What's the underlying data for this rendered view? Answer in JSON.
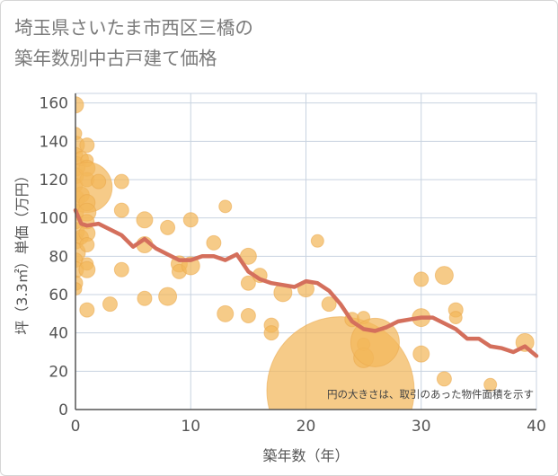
{
  "title_lines": [
    "埼玉県さいたま市西区三橋の",
    "築年数別中古戸建て価格"
  ],
  "chart_data": {
    "type": "scatter",
    "xlabel": "築年数（年）",
    "ylabel": "坪（3.3㎡）単価（万円）",
    "xlim": [
      0,
      40
    ],
    "ylim": [
      0,
      165
    ],
    "x_ticks": [
      "0",
      "10",
      "20",
      "30",
      "40"
    ],
    "y_ticks": [
      "0",
      "20",
      "40",
      "60",
      "80",
      "100",
      "120",
      "140",
      "160"
    ],
    "grid": true,
    "note": "円の大きさは、取引のあった物件面積を示す",
    "colors": {
      "bubble": "#f2b75a",
      "line": "#d46f5c",
      "grid": "#c8d3e0",
      "axis": "#555555"
    },
    "trend_line": {
      "x": [
        0,
        0.5,
        1,
        2,
        3,
        4,
        5,
        6,
        7,
        8,
        9,
        10,
        11,
        12,
        13,
        14,
        15,
        16,
        17,
        18,
        19,
        20,
        21,
        22,
        23,
        24,
        25,
        26,
        27,
        28,
        29,
        30,
        31,
        32,
        33,
        34,
        35,
        36,
        37,
        38,
        39,
        40
      ],
      "y": [
        104,
        97,
        96,
        97,
        94,
        91,
        85,
        89,
        84,
        81,
        78,
        78,
        80,
        80,
        78,
        81,
        72,
        68,
        66,
        65,
        64,
        67,
        66,
        62,
        55,
        46,
        42,
        41,
        43,
        46,
        47,
        48,
        48,
        45,
        42,
        37,
        37,
        33,
        32,
        30,
        33,
        28
      ]
    },
    "bubbles": [
      {
        "x": 0,
        "y": 159,
        "size": 9
      },
      {
        "x": 0,
        "y": 144,
        "size": 7
      },
      {
        "x": 0,
        "y": 138,
        "size": 10
      },
      {
        "x": 0,
        "y": 133,
        "size": 8
      },
      {
        "x": 0,
        "y": 127,
        "size": 11
      },
      {
        "x": 0,
        "y": 122,
        "size": 9
      },
      {
        "x": 0,
        "y": 117,
        "size": 8
      },
      {
        "x": 0,
        "y": 110,
        "size": 10
      },
      {
        "x": 0,
        "y": 103,
        "size": 9
      },
      {
        "x": 0,
        "y": 98,
        "size": 8
      },
      {
        "x": 0,
        "y": 93,
        "size": 10
      },
      {
        "x": 0,
        "y": 88,
        "size": 9
      },
      {
        "x": 0,
        "y": 82,
        "size": 11
      },
      {
        "x": 0,
        "y": 78,
        "size": 8
      },
      {
        "x": 0,
        "y": 73,
        "size": 9
      },
      {
        "x": 0,
        "y": 66,
        "size": 8
      },
      {
        "x": 0,
        "y": 63,
        "size": 7
      },
      {
        "x": 0.5,
        "y": 131,
        "size": 8
      },
      {
        "x": 0.5,
        "y": 112,
        "size": 9
      },
      {
        "x": 0.5,
        "y": 90,
        "size": 8
      },
      {
        "x": 1,
        "y": 138,
        "size": 8
      },
      {
        "x": 1,
        "y": 130,
        "size": 7
      },
      {
        "x": 1,
        "y": 126,
        "size": 9
      },
      {
        "x": 1,
        "y": 120,
        "size": 8
      },
      {
        "x": 1,
        "y": 116,
        "size": 28
      },
      {
        "x": 1,
        "y": 108,
        "size": 9
      },
      {
        "x": 1,
        "y": 103,
        "size": 10
      },
      {
        "x": 1,
        "y": 98,
        "size": 8
      },
      {
        "x": 1,
        "y": 92,
        "size": 9
      },
      {
        "x": 1,
        "y": 86,
        "size": 8
      },
      {
        "x": 1,
        "y": 76,
        "size": 7
      },
      {
        "x": 1,
        "y": 73,
        "size": 9
      },
      {
        "x": 1,
        "y": 52,
        "size": 8
      },
      {
        "x": 2,
        "y": 119,
        "size": 8
      },
      {
        "x": 3,
        "y": 55,
        "size": 8
      },
      {
        "x": 4,
        "y": 119,
        "size": 8
      },
      {
        "x": 4,
        "y": 104,
        "size": 8
      },
      {
        "x": 4,
        "y": 73,
        "size": 8
      },
      {
        "x": 6,
        "y": 99,
        "size": 9
      },
      {
        "x": 6,
        "y": 86,
        "size": 9
      },
      {
        "x": 6,
        "y": 58,
        "size": 8
      },
      {
        "x": 8,
        "y": 95,
        "size": 8
      },
      {
        "x": 8,
        "y": 59,
        "size": 10
      },
      {
        "x": 9,
        "y": 76,
        "size": 9
      },
      {
        "x": 9,
        "y": 72,
        "size": 8
      },
      {
        "x": 10,
        "y": 99,
        "size": 8
      },
      {
        "x": 10,
        "y": 75,
        "size": 10
      },
      {
        "x": 12,
        "y": 87,
        "size": 8
      },
      {
        "x": 13,
        "y": 106,
        "size": 7
      },
      {
        "x": 13,
        "y": 50,
        "size": 9
      },
      {
        "x": 15,
        "y": 80,
        "size": 9
      },
      {
        "x": 15,
        "y": 66,
        "size": 8
      },
      {
        "x": 15,
        "y": 49,
        "size": 8
      },
      {
        "x": 16,
        "y": 70,
        "size": 8
      },
      {
        "x": 17,
        "y": 44,
        "size": 8
      },
      {
        "x": 17,
        "y": 40,
        "size": 8
      },
      {
        "x": 18,
        "y": 61,
        "size": 10
      },
      {
        "x": 20,
        "y": 63,
        "size": 9
      },
      {
        "x": 21,
        "y": 88,
        "size": 7
      },
      {
        "x": 22,
        "y": 55,
        "size": 8
      },
      {
        "x": 23,
        "y": 10,
        "size": 82
      },
      {
        "x": 24,
        "y": 47,
        "size": 8
      },
      {
        "x": 25,
        "y": 48,
        "size": 7
      },
      {
        "x": 25,
        "y": 34,
        "size": 7
      },
      {
        "x": 25,
        "y": 27,
        "size": 11
      },
      {
        "x": 26,
        "y": 35,
        "size": 27
      },
      {
        "x": 30,
        "y": 68,
        "size": 8
      },
      {
        "x": 30,
        "y": 48,
        "size": 10
      },
      {
        "x": 30,
        "y": 29,
        "size": 9
      },
      {
        "x": 32,
        "y": 70,
        "size": 10
      },
      {
        "x": 32,
        "y": 16,
        "size": 8
      },
      {
        "x": 33,
        "y": 52,
        "size": 8
      },
      {
        "x": 33,
        "y": 48,
        "size": 7
      },
      {
        "x": 36,
        "y": 13,
        "size": 7
      },
      {
        "x": 39,
        "y": 35,
        "size": 10
      }
    ]
  }
}
